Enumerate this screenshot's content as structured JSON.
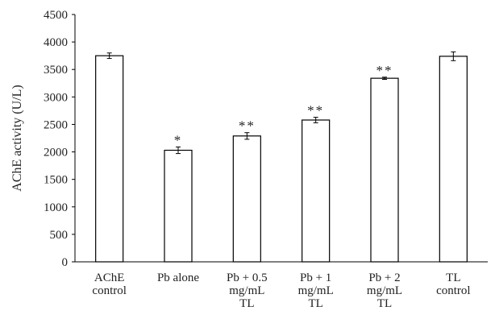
{
  "chart_data": {
    "type": "bar",
    "ylabel": "AChE activity (U/L)",
    "ylim": [
      0,
      4500
    ],
    "yticks": [
      "0",
      "500",
      "1000",
      "1500",
      "2000",
      "2500",
      "3000",
      "3500",
      "4000",
      "4500"
    ],
    "categories": [
      [
        "AChE",
        "control"
      ],
      [
        "Pb alone"
      ],
      [
        "Pb + 0.5",
        "mg/mL",
        "TL"
      ],
      [
        "Pb + 1",
        "mg/mL",
        "TL"
      ],
      [
        "Pb + 2",
        "mg/mL",
        "TL"
      ],
      [
        "TL",
        "control"
      ]
    ],
    "values": [
      3750,
      2030,
      2290,
      2580,
      3340,
      3740
    ],
    "errors": [
      50,
      60,
      60,
      50,
      20,
      80
    ],
    "significance": [
      "",
      "*",
      "**",
      "**",
      "**",
      ""
    ],
    "bar_fill": "#ffffff",
    "bar_stroke": "#000000",
    "grid": false,
    "legend": "none"
  }
}
